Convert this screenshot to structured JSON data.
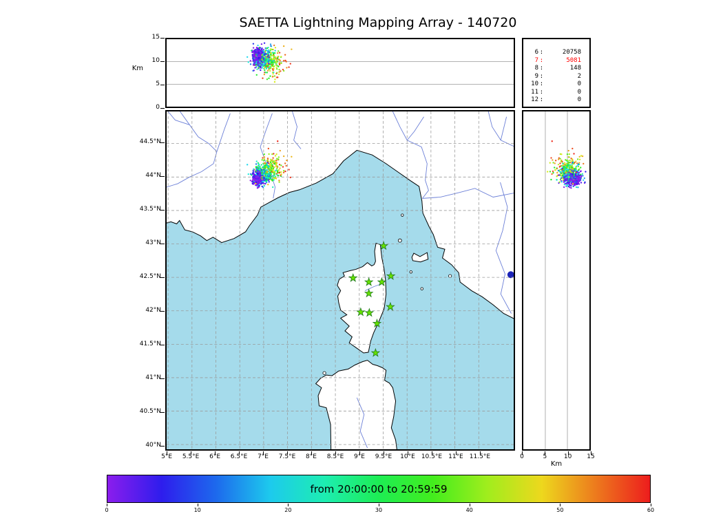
{
  "title": "SAETTA Lightning Mapping Array - 140720",
  "stats": {
    "rows": [
      {
        "label": "6",
        "value": "20758",
        "highlight": false
      },
      {
        "label": "7",
        "value": "5081",
        "highlight": true
      },
      {
        "label": "8",
        "value": "148",
        "highlight": false
      },
      {
        "label": "9",
        "value": "2",
        "highlight": false
      },
      {
        "label": "10",
        "value": "0",
        "highlight": false
      },
      {
        "label": "11",
        "value": "0",
        "highlight": false
      },
      {
        "label": "12",
        "value": "0",
        "highlight": false
      }
    ],
    "highlight_color": "#ff0000"
  },
  "axes": {
    "alt_label": "Km",
    "km_label_right": "Km",
    "alt_ticks": [
      0,
      5,
      10,
      15
    ],
    "alt_range": [
      0,
      15
    ],
    "lat_ticks": [
      "40°N",
      "40.5°N",
      "41°N",
      "41.5°N",
      "42°N",
      "42.5°N",
      "43°N",
      "43.5°N",
      "44°N",
      "44.5°N"
    ],
    "lat_tick_values": [
      40,
      40.5,
      41,
      41.5,
      42,
      42.5,
      43,
      43.5,
      44,
      44.5
    ],
    "lon_ticks": [
      "5°E",
      "5.5°E",
      "6°E",
      "6.5°E",
      "7°E",
      "7.5°E",
      "8°E",
      "8.5°E",
      "9°E",
      "9.5°E",
      "10°E",
      "10.5°E",
      "11°E",
      "11.5°E"
    ],
    "lon_tick_values": [
      5,
      5.5,
      6,
      6.5,
      7,
      7.5,
      8,
      8.5,
      9,
      9.5,
      10,
      10.5,
      11,
      11.5
    ],
    "lon_range": [
      4.97,
      12.23
    ],
    "lat_range": [
      39.93,
      44.98
    ]
  },
  "colorbar": {
    "label": "from 20:00:00 to 20:59:59",
    "ticks": [
      0,
      10,
      20,
      30,
      40,
      50,
      60
    ],
    "colors": [
      "#8b1ded",
      "#2e1ded",
      "#1d69ed",
      "#1dcaed",
      "#1dedb2",
      "#1ded54",
      "#43ed1d",
      "#a0ed1d",
      "#edd81d",
      "#ed7a1d",
      "#ed1d1d"
    ]
  },
  "map": {
    "sea_color": "#a5dbeb",
    "land_color": "#ffffff",
    "coast_color": "#000000",
    "river_color": "#6b7fd7",
    "grid_color": "#9a9a9a",
    "station_color": "#66e000",
    "station_edge_color": "#1f7a1f",
    "lake_color": "#1c24b8",
    "stations": [
      [
        9.51,
        42.97
      ],
      [
        8.87,
        42.49
      ],
      [
        9.2,
        42.43
      ],
      [
        9.47,
        42.43
      ],
      [
        9.66,
        42.52
      ],
      [
        9.2,
        42.26
      ],
      [
        9.65,
        42.06
      ],
      [
        9.03,
        41.98
      ],
      [
        9.21,
        41.97
      ],
      [
        9.37,
        41.81
      ],
      [
        9.34,
        41.37
      ]
    ],
    "lake": {
      "lon": 12.17,
      "lat": 42.54,
      "r": 5
    },
    "coast": {
      "mainland": [
        [
          4.9,
          45.1
        ],
        [
          4.9,
          43.3
        ],
        [
          5.06,
          43.33
        ],
        [
          5.18,
          43.3
        ],
        [
          5.24,
          43.35
        ],
        [
          5.35,
          43.21
        ],
        [
          5.51,
          43.18
        ],
        [
          5.68,
          43.12
        ],
        [
          5.81,
          43.05
        ],
        [
          5.94,
          43.1
        ],
        [
          6.12,
          43.02
        ],
        [
          6.38,
          43.08
        ],
        [
          6.62,
          43.18
        ],
        [
          6.7,
          43.27
        ],
        [
          6.87,
          43.43
        ],
        [
          6.94,
          43.55
        ],
        [
          7.12,
          43.62
        ],
        [
          7.3,
          43.69
        ],
        [
          7.54,
          43.77
        ],
        [
          7.75,
          43.81
        ],
        [
          8.1,
          43.91
        ],
        [
          8.45,
          44.05
        ],
        [
          8.67,
          44.24
        ],
        [
          8.95,
          44.4
        ],
        [
          9.27,
          44.33
        ],
        [
          9.56,
          44.2
        ],
        [
          9.84,
          44.06
        ],
        [
          10.06,
          43.95
        ],
        [
          10.25,
          43.86
        ],
        [
          10.31,
          43.64
        ],
        [
          10.33,
          43.46
        ],
        [
          10.46,
          43.26
        ],
        [
          10.55,
          43.14
        ],
        [
          10.64,
          42.95
        ],
        [
          10.79,
          42.92
        ],
        [
          10.74,
          42.79
        ],
        [
          10.93,
          42.69
        ],
        [
          11.08,
          42.57
        ],
        [
          11.11,
          42.43
        ],
        [
          11.22,
          42.37
        ],
        [
          11.35,
          42.3
        ],
        [
          11.57,
          42.21
        ],
        [
          11.8,
          42.09
        ],
        [
          12.02,
          41.96
        ],
        [
          12.3,
          41.86
        ],
        [
          12.3,
          45.1
        ]
      ],
      "corsica": [
        [
          9.35,
          43.01
        ],
        [
          9.44,
          42.99
        ],
        [
          9.47,
          42.8
        ],
        [
          9.52,
          42.62
        ],
        [
          9.55,
          42.45
        ],
        [
          9.56,
          42.25
        ],
        [
          9.52,
          42.03
        ],
        [
          9.41,
          41.84
        ],
        [
          9.3,
          41.67
        ],
        [
          9.24,
          41.55
        ],
        [
          9.19,
          41.38
        ],
        [
          9.09,
          41.37
        ],
        [
          8.93,
          41.45
        ],
        [
          8.79,
          41.52
        ],
        [
          8.85,
          41.61
        ],
        [
          8.7,
          41.7
        ],
        [
          8.79,
          41.77
        ],
        [
          8.61,
          41.89
        ],
        [
          8.74,
          41.94
        ],
        [
          8.61,
          42.01
        ],
        [
          8.57,
          42.12
        ],
        [
          8.55,
          42.22
        ],
        [
          8.61,
          42.3
        ],
        [
          8.54,
          42.38
        ],
        [
          8.58,
          42.47
        ],
        [
          8.69,
          42.52
        ],
        [
          8.66,
          42.57
        ],
        [
          8.81,
          42.6
        ],
        [
          8.93,
          42.62
        ],
        [
          9.07,
          42.66
        ],
        [
          9.17,
          42.72
        ],
        [
          9.26,
          42.67
        ],
        [
          9.31,
          42.69
        ],
        [
          9.34,
          42.74
        ],
        [
          9.32,
          42.89
        ]
      ],
      "sardinia": [
        [
          8.41,
          39.85
        ],
        [
          8.4,
          40.3
        ],
        [
          8.31,
          40.55
        ],
        [
          8.16,
          40.58
        ],
        [
          8.14,
          40.73
        ],
        [
          8.21,
          40.85
        ],
        [
          8.09,
          40.91
        ],
        [
          8.19,
          40.99
        ],
        [
          8.31,
          41.04
        ],
        [
          8.43,
          41.03
        ],
        [
          8.57,
          41.1
        ],
        [
          8.77,
          41.13
        ],
        [
          8.91,
          41.19
        ],
        [
          9.07,
          41.24
        ],
        [
          9.17,
          41.26
        ],
        [
          9.28,
          41.2
        ],
        [
          9.38,
          41.18
        ],
        [
          9.48,
          41.15
        ],
        [
          9.56,
          41.11
        ],
        [
          9.53,
          40.96
        ],
        [
          9.63,
          40.92
        ],
        [
          9.7,
          40.85
        ],
        [
          9.76,
          40.65
        ],
        [
          9.72,
          40.42
        ],
        [
          9.67,
          40.25
        ],
        [
          9.76,
          40.07
        ],
        [
          9.8,
          39.85
        ]
      ],
      "elba": [
        [
          10.1,
          42.8
        ],
        [
          10.14,
          42.86
        ],
        [
          10.27,
          42.81
        ],
        [
          10.42,
          42.87
        ],
        [
          10.44,
          42.77
        ],
        [
          10.28,
          42.73
        ],
        [
          10.12,
          42.75
        ]
      ]
    },
    "islets": [
      [
        9.85,
        43.05,
        2.5
      ],
      [
        9.9,
        43.43,
        1.8
      ],
      [
        10.08,
        42.58,
        1.8
      ],
      [
        10.31,
        42.33,
        1.8
      ],
      [
        10.9,
        42.52,
        2.2
      ],
      [
        8.27,
        41.07,
        2.2
      ]
    ],
    "rivers": [
      [
        [
          5.25,
          44.98
        ],
        [
          5.45,
          44.78
        ],
        [
          5.63,
          44.6
        ],
        [
          5.85,
          44.5
        ],
        [
          6.02,
          44.38
        ],
        [
          5.95,
          44.2
        ],
        [
          5.7,
          44.08
        ],
        [
          5.45,
          44.0
        ],
        [
          5.2,
          43.9
        ],
        [
          4.97,
          43.85
        ]
      ],
      [
        [
          6.3,
          44.95
        ],
        [
          6.18,
          44.72
        ],
        [
          6.02,
          44.38
        ]
      ],
      [
        [
          5.0,
          44.98
        ],
        [
          5.15,
          44.85
        ],
        [
          5.45,
          44.78
        ]
      ],
      [
        [
          7.18,
          44.95
        ],
        [
          7.05,
          44.7
        ],
        [
          6.93,
          44.45
        ],
        [
          7.03,
          44.25
        ],
        [
          7.15,
          44.05
        ],
        [
          7.24,
          43.85
        ],
        [
          7.2,
          43.68
        ]
      ],
      [
        [
          7.6,
          44.98
        ],
        [
          7.7,
          44.75
        ],
        [
          7.63,
          44.55
        ],
        [
          7.78,
          44.42
        ]
      ],
      [
        [
          9.7,
          44.98
        ],
        [
          9.85,
          44.75
        ],
        [
          10.0,
          44.55
        ],
        [
          10.3,
          44.45
        ],
        [
          10.42,
          44.2
        ],
        [
          10.38,
          43.95
        ],
        [
          10.45,
          43.8
        ],
        [
          10.32,
          43.68
        ]
      ],
      [
        [
          10.35,
          44.9
        ],
        [
          10.15,
          44.68
        ],
        [
          10.0,
          44.55
        ]
      ],
      [
        [
          12.23,
          43.76
        ],
        [
          11.8,
          43.7
        ],
        [
          11.42,
          43.83
        ],
        [
          11.1,
          43.77
        ],
        [
          10.7,
          43.7
        ],
        [
          10.32,
          43.68
        ]
      ],
      [
        [
          11.95,
          43.92
        ],
        [
          12.1,
          43.55
        ],
        [
          12.0,
          43.2
        ],
        [
          11.86,
          42.9
        ],
        [
          12.05,
          42.55
        ],
        [
          11.96,
          42.25
        ],
        [
          12.18,
          41.96
        ]
      ],
      [
        [
          11.7,
          44.98
        ],
        [
          11.78,
          44.75
        ],
        [
          11.96,
          44.55
        ],
        [
          12.23,
          44.46
        ]
      ],
      [
        [
          12.08,
          44.9
        ],
        [
          11.96,
          44.55
        ]
      ],
      [
        [
          8.95,
          40.7
        ],
        [
          9.1,
          40.45
        ],
        [
          9.02,
          40.2
        ],
        [
          9.17,
          39.95
        ]
      ],
      [
        [
          9.12,
          42.3
        ],
        [
          9.3,
          42.36
        ],
        [
          9.45,
          42.4
        ],
        [
          9.55,
          42.44
        ]
      ]
    ]
  },
  "chart_data": {
    "type": "scatter",
    "title": "SAETTA Lightning Mapping Array - 140720",
    "panels": [
      {
        "name": "altitude-vs-longitude",
        "ylabel": "Km",
        "xlim": [
          4.97,
          12.23
        ],
        "ylim": [
          0,
          15
        ],
        "gridlines_km": [
          5,
          10
        ]
      },
      {
        "name": "map-latitude-vs-longitude",
        "xlim": [
          4.97,
          12.23
        ],
        "ylim": [
          39.93,
          44.98
        ],
        "grid_step_deg": 0.5
      },
      {
        "name": "altitude-vs-latitude",
        "xlabel": "Km",
        "xlim": [
          0,
          15
        ],
        "ylim": [
          39.93,
          44.98
        ],
        "gridlines_km": [
          5,
          10
        ]
      }
    ],
    "colormap": {
      "label": "from 20:00:00 to 20:59:59",
      "axis_ticks": [
        0,
        10,
        20,
        30,
        40,
        50,
        60
      ],
      "unit": "minutes"
    },
    "source_counts_by_min_stations": {
      "6": 20758,
      "7": 5081,
      "8": 148,
      "9": 2,
      "10": 0,
      "11": 0,
      "12": 0
    },
    "storm_cluster": {
      "count": 780,
      "lon_drift": [
        6.87,
        7.27
      ],
      "lat_drift": [
        43.97,
        44.19
      ],
      "alt_drift_km": [
        11.3,
        9.3
      ],
      "lon_spread": [
        0.065,
        0.17
      ],
      "lat_spread": [
        0.05,
        0.12
      ],
      "alt_spread_km": [
        1.05,
        1.6
      ],
      "time_bias_exponent": 2.0
    },
    "station_count": 11
  }
}
